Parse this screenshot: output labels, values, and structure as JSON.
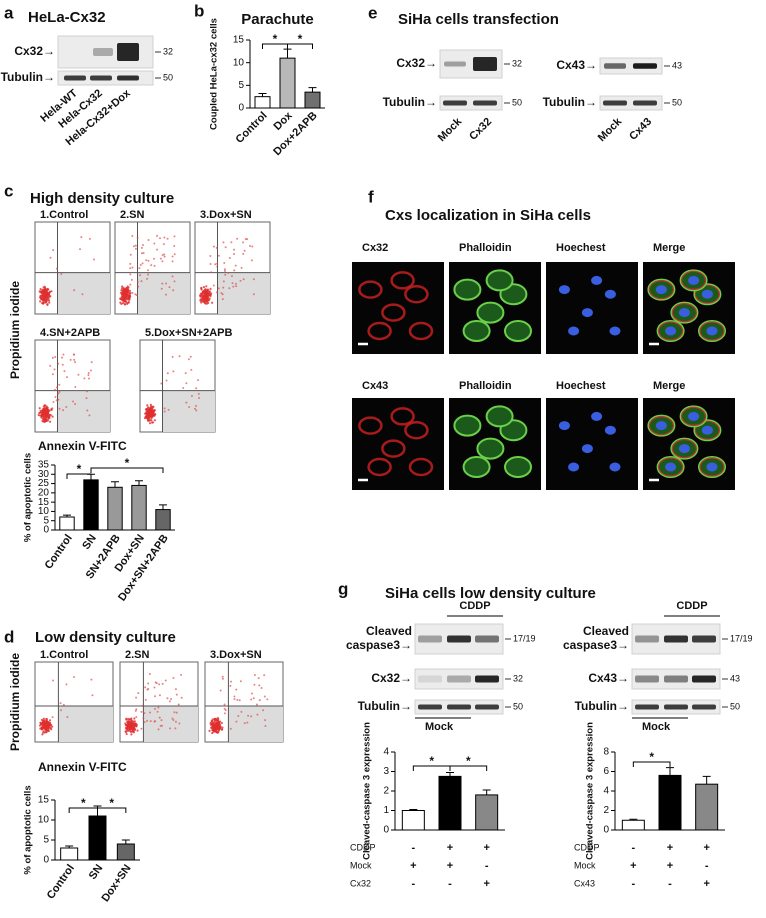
{
  "panels": {
    "a": {
      "letter": "a",
      "title": "HeLa-Cx32",
      "rows": [
        {
          "label": "Cx32→",
          "size": "32"
        },
        {
          "label": "Tubulin→",
          "size": "50"
        }
      ],
      "lanes": [
        "Hela-WT",
        "Hela-Cx32",
        "Hela-Cx32+Dox"
      ]
    },
    "b": {
      "letter": "b"
    },
    "c": {
      "letter": "c",
      "title": "High density culture",
      "y_label": "Propidium iodide",
      "x_label": "Annexin V-FITC",
      "plots": [
        "1.Control",
        "2.SN",
        "3.Dox+SN",
        "4.SN+2APB",
        "5.Dox+SN+2APB"
      ]
    },
    "d": {
      "letter": "d",
      "title": "Low density culture",
      "y_label": "Propidium iodide",
      "x_label": "Annexin V-FITC",
      "plots": [
        "1.Control",
        "2.SN",
        "3.Dox+SN"
      ]
    },
    "e": {
      "letter": "e",
      "title": "SiHa cells transfection",
      "blots": [
        {
          "rows": [
            {
              "label": "Cx32→",
              "size": "32"
            },
            {
              "label": "Tubulin→",
              "size": "50"
            }
          ],
          "lanes": [
            "Mock",
            "Cx32"
          ]
        },
        {
          "rows": [
            {
              "label": "Cx43→",
              "size": "43"
            },
            {
              "label": "Tubulin→",
              "size": "50"
            }
          ],
          "lanes": [
            "Mock",
            "Cx43"
          ]
        }
      ]
    },
    "f": {
      "letter": "f",
      "title": "Cxs localization in SiHa cells",
      "rows": [
        [
          "Cx32",
          "Phalloidin",
          "Hoechest",
          "Merge"
        ],
        [
          "Cx43",
          "Phalloidin",
          "Hoechest",
          "Merge"
        ]
      ]
    },
    "g": {
      "letter": "g",
      "title": "SiHa cells low density culture",
      "blots": [
        {
          "treatment": "CDDP",
          "control": "Mock",
          "rows": [
            {
              "lines": [
                "Cleaved",
                "caspase3→"
              ],
              "size": "17/19"
            },
            {
              "label": "Cx32→",
              "size": "32"
            },
            {
              "label": "Tubulin→",
              "size": "50"
            }
          ]
        },
        {
          "treatment": "CDDP",
          "control": "Mock",
          "rows": [
            {
              "lines": [
                "Cleaved",
                "caspase3→"
              ],
              "size": "17/19"
            },
            {
              "label": "Cx43→",
              "size": "43"
            },
            {
              "label": "Tubulin→",
              "size": "50"
            }
          ]
        }
      ]
    }
  },
  "chart_data": [
    {
      "type": "bar",
      "title": "Parachute",
      "y_label": "Coupled HeLa-cx32 cells",
      "categories": [
        "Control",
        "Dox",
        "Dox+2APB"
      ],
      "values": [
        2.5,
        11,
        3.5
      ],
      "errors": [
        0.7,
        2,
        1
      ],
      "colors": [
        "#ffffff",
        "#b8b8b8",
        "#707070"
      ],
      "ylim": [
        0,
        15
      ],
      "yticks": [
        0,
        5,
        10,
        15
      ],
      "annotations": [
        "*",
        "*"
      ]
    },
    {
      "type": "bar",
      "y_label": "% of apoptotic cells",
      "categories": [
        "Control",
        "SN",
        "SN+2APB",
        "Dox+SN",
        "Dox+SN+2APB"
      ],
      "values": [
        7,
        27,
        23,
        24,
        11
      ],
      "errors": [
        1,
        3,
        3,
        2.5,
        2.5
      ],
      "colors": [
        "#ffffff",
        "#000000",
        "#999999",
        "#999999",
        "#666666"
      ],
      "ylim": [
        0,
        35
      ],
      "yticks": [
        0,
        5,
        10,
        15,
        20,
        25,
        30,
        35
      ],
      "annotations": [
        "*",
        "*"
      ]
    },
    {
      "type": "bar",
      "y_label": "% of apoptotic cells",
      "categories": [
        "Control",
        "SN",
        "Dox+SN"
      ],
      "values": [
        3,
        11,
        4
      ],
      "errors": [
        0.5,
        2.5,
        1
      ],
      "colors": [
        "#ffffff",
        "#000000",
        "#666666"
      ],
      "ylim": [
        0,
        15
      ],
      "yticks": [
        0,
        5,
        10,
        15
      ],
      "annotations": [
        "*",
        "*"
      ]
    },
    {
      "type": "bar",
      "y_label": "Cleaved-caspase 3 expression",
      "values": [
        1,
        2.75,
        1.8
      ],
      "errors": [
        0.05,
        0.2,
        0.25
      ],
      "colors": [
        "#ffffff",
        "#000000",
        "#888888"
      ],
      "ylim": [
        0,
        4
      ],
      "yticks": [
        0,
        1,
        2,
        3,
        4
      ],
      "annotations": [
        "*",
        "*"
      ],
      "conditions": [
        {
          "name": "CDDP",
          "signs": [
            "-",
            "+",
            "+"
          ]
        },
        {
          "name": "Mock",
          "signs": [
            "+",
            "+",
            "-"
          ]
        },
        {
          "name": "Cx32",
          "signs": [
            "-",
            "-",
            "+"
          ]
        }
      ]
    },
    {
      "type": "bar",
      "y_label": "Cleaved-caspase 3 expression",
      "values": [
        1,
        5.6,
        4.7
      ],
      "errors": [
        0.1,
        0.8,
        0.8
      ],
      "colors": [
        "#ffffff",
        "#000000",
        "#888888"
      ],
      "ylim": [
        0,
        8
      ],
      "yticks": [
        0,
        2,
        4,
        6,
        8
      ],
      "annotations": [
        "*"
      ],
      "conditions": [
        {
          "name": "CDDP",
          "signs": [
            "-",
            "+",
            "+"
          ]
        },
        {
          "name": "Mock",
          "signs": [
            "+",
            "+",
            "-"
          ]
        },
        {
          "name": "Cx43",
          "signs": [
            "-",
            "-",
            "+"
          ]
        }
      ]
    }
  ]
}
